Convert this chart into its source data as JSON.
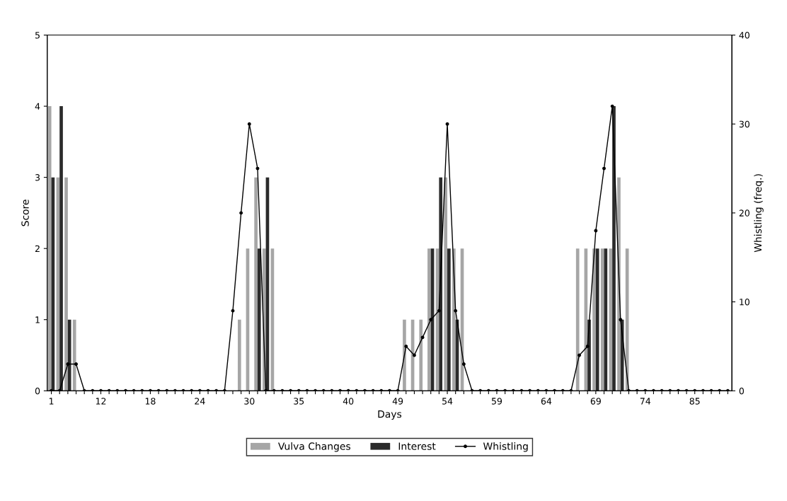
{
  "chart_data": {
    "type": "bar",
    "xlabel": "Days",
    "ylabel": "Score",
    "y2label": "Whistling (freq.)",
    "categories": [
      "1",
      null,
      null,
      null,
      null,
      null,
      "12",
      null,
      null,
      null,
      null,
      null,
      "18",
      null,
      null,
      null,
      null,
      null,
      "24",
      null,
      null,
      null,
      null,
      null,
      "30",
      null,
      null,
      null,
      null,
      null,
      "35",
      null,
      null,
      null,
      null,
      null,
      "40",
      null,
      null,
      null,
      null,
      null,
      "49",
      null,
      null,
      null,
      null,
      null,
      "54",
      null,
      null,
      null,
      null,
      null,
      "59",
      null,
      null,
      null,
      null,
      null,
      "64",
      null,
      null,
      null,
      null,
      null,
      "69",
      null,
      null,
      null,
      null,
      null,
      "74",
      null,
      null,
      null,
      null,
      null,
      "85",
      null,
      null,
      null,
      null
    ],
    "series": [
      {
        "name": "Vulva Changes",
        "color": "#a6a6a6",
        "values": [
          4,
          3,
          3,
          1,
          0,
          0,
          0,
          0,
          0,
          0,
          0,
          0,
          0,
          0,
          0,
          0,
          0,
          0,
          0,
          0,
          0,
          0,
          0,
          1,
          2,
          3,
          2,
          2,
          0,
          0,
          0,
          0,
          0,
          0,
          0,
          0,
          0,
          0,
          0,
          0,
          0,
          0,
          0,
          1,
          1,
          1,
          2,
          2,
          3,
          2,
          2,
          0,
          0,
          0,
          0,
          0,
          0,
          0,
          0,
          0,
          0,
          0,
          0,
          0,
          2,
          2,
          2,
          2,
          2,
          3,
          2,
          0,
          0,
          0,
          0,
          0,
          0,
          0,
          0,
          0,
          0,
          0,
          0
        ]
      },
      {
        "name": "Interest",
        "color": "#2b2b2b",
        "values": [
          3,
          4,
          1,
          0,
          0,
          0,
          0,
          0,
          0,
          0,
          0,
          0,
          0,
          0,
          0,
          0,
          0,
          0,
          0,
          0,
          0,
          0,
          0,
          0,
          0,
          2,
          3,
          0,
          0,
          0,
          0,
          0,
          0,
          0,
          0,
          0,
          0,
          0,
          0,
          0,
          0,
          0,
          0,
          0,
          0,
          0,
          2,
          3,
          2,
          1,
          0,
          0,
          0,
          0,
          0,
          0,
          0,
          0,
          0,
          0,
          0,
          0,
          0,
          0,
          0,
          1,
          2,
          2,
          4,
          1,
          0,
          0,
          0,
          0,
          0,
          0,
          0,
          0,
          0,
          0,
          0,
          0,
          0
        ]
      },
      {
        "name": "Whistling",
        "type": "line",
        "axis": "y2",
        "color": "#000000",
        "marker": "circle",
        "values": [
          0,
          0,
          3,
          3,
          0,
          0,
          0,
          0,
          0,
          0,
          0,
          0,
          0,
          0,
          0,
          0,
          0,
          0,
          0,
          0,
          0,
          0,
          9,
          20,
          30,
          25,
          0,
          0,
          0,
          0,
          0,
          0,
          0,
          0,
          0,
          0,
          0,
          0,
          0,
          0,
          0,
          0,
          0,
          5,
          4,
          6,
          8,
          9,
          30,
          9,
          3,
          0,
          0,
          0,
          0,
          0,
          0,
          0,
          0,
          0,
          0,
          0,
          0,
          0,
          4,
          5,
          18,
          25,
          32,
          8,
          0,
          0,
          0,
          0,
          0,
          0,
          0,
          0,
          0,
          0,
          0,
          0,
          0
        ]
      }
    ],
    "ylim": [
      0,
      5
    ],
    "yticks": [
      0,
      1,
      2,
      3,
      4,
      5
    ],
    "y2lim": [
      0,
      40
    ],
    "y2ticks": [
      0,
      10,
      20,
      30,
      40
    ],
    "grid": false,
    "legend": "bottom"
  }
}
